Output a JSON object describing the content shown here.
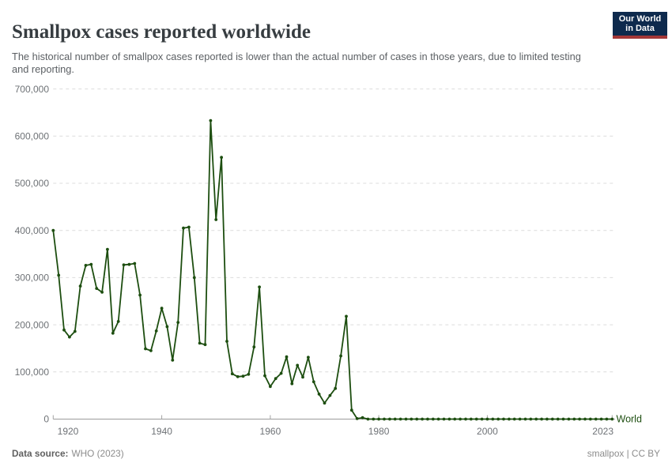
{
  "header": {
    "title": "Smallpox cases reported worldwide",
    "subtitle": "The historical number of smallpox cases reported is lower than the actual number of cases in those years, due to limited testing and reporting.",
    "logo": {
      "line1": "Our World",
      "line2": "in Data",
      "bg_color": "#0e2a4d",
      "accent_color": "#a33737"
    }
  },
  "footer": {
    "source_label": "Data source:",
    "source_value": "WHO (2023)",
    "credit": "smallpox | CC BY"
  },
  "chart_data": {
    "type": "line",
    "title": "Smallpox cases reported worldwide",
    "xlabel": "",
    "ylabel": "",
    "xlim": [
      1920,
      2023
    ],
    "ylim": [
      0,
      700000
    ],
    "grid": "horizontal-dashed",
    "legend_position": "end-of-line-label",
    "x_ticks": [
      1920,
      1940,
      1960,
      1980,
      2000,
      2023
    ],
    "y_ticks": [
      0,
      100000,
      200000,
      300000,
      400000,
      500000,
      600000,
      700000
    ],
    "series": [
      {
        "name": "World",
        "color": "#1d4e10",
        "x": [
          1920,
          1921,
          1922,
          1923,
          1924,
          1925,
          1926,
          1927,
          1928,
          1929,
          1930,
          1931,
          1932,
          1933,
          1934,
          1935,
          1936,
          1937,
          1938,
          1939,
          1940,
          1941,
          1942,
          1943,
          1944,
          1945,
          1946,
          1947,
          1948,
          1949,
          1950,
          1951,
          1952,
          1953,
          1954,
          1955,
          1956,
          1957,
          1958,
          1959,
          1960,
          1961,
          1962,
          1963,
          1964,
          1965,
          1966,
          1967,
          1968,
          1969,
          1970,
          1971,
          1972,
          1973,
          1974,
          1975,
          1976,
          1977,
          1978,
          1979,
          1980,
          1981,
          1982,
          1983,
          1984,
          1985,
          1986,
          1987,
          1988,
          1989,
          1990,
          1991,
          1992,
          1993,
          1994,
          1995,
          1996,
          1997,
          1998,
          1999,
          2000,
          2001,
          2002,
          2003,
          2004,
          2005,
          2006,
          2007,
          2008,
          2009,
          2010,
          2011,
          2012,
          2013,
          2014,
          2015,
          2016,
          2017,
          2018,
          2019,
          2020,
          2021,
          2022,
          2023
        ],
        "values": [
          400000,
          305000,
          189000,
          174000,
          186000,
          282000,
          326000,
          328000,
          277000,
          269000,
          360000,
          182000,
          207000,
          327000,
          328000,
          330000,
          263000,
          149000,
          145000,
          187000,
          235000,
          196000,
          125000,
          205000,
          405000,
          407000,
          300000,
          161000,
          158000,
          633000,
          423000,
          555000,
          165000,
          96000,
          90000,
          91000,
          95000,
          153000,
          280000,
          92000,
          69000,
          86000,
          97000,
          132000,
          75000,
          114000,
          89000,
          131000,
          79000,
          53000,
          34000,
          50000,
          65000,
          134000,
          218000,
          19000,
          1000,
          3000,
          0,
          0,
          0,
          0,
          0,
          0,
          0,
          0,
          0,
          0,
          0,
          0,
          0,
          0,
          0,
          0,
          0,
          0,
          0,
          0,
          0,
          0,
          0,
          0,
          0,
          0,
          0,
          0,
          0,
          0,
          0,
          0,
          0,
          0,
          0,
          0,
          0,
          0,
          0,
          0,
          0,
          0,
          0,
          0,
          0,
          0
        ]
      }
    ]
  }
}
